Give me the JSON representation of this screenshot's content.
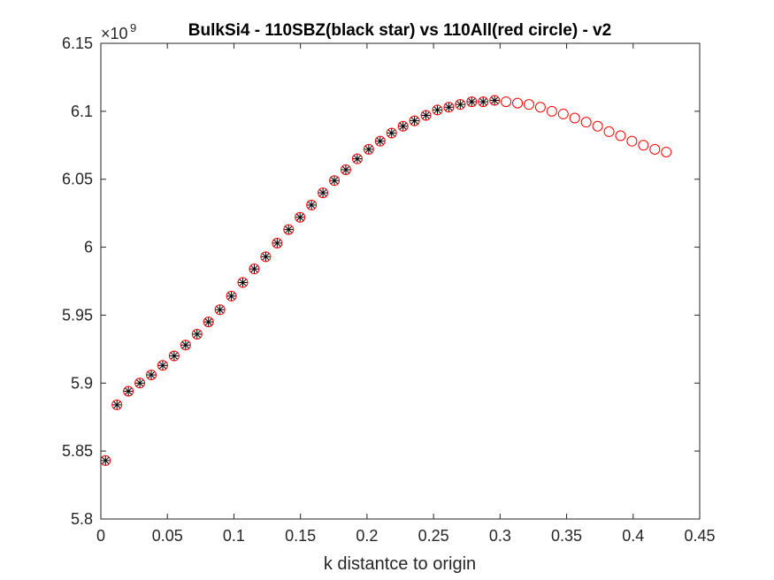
{
  "chart_data": {
    "type": "scatter",
    "title": "BulkSi4 - 110SBZ(black star) vs 110All(red circle) - v2",
    "xlabel": "k distantce to origin",
    "ylabel": "",
    "y_exponent_base": "×10",
    "y_exponent_power": "9",
    "xlim": [
      0,
      0.45
    ],
    "ylim": [
      5.8,
      6.15
    ],
    "xticks": [
      0,
      0.05,
      0.1,
      0.15,
      0.2,
      0.25,
      0.3,
      0.35,
      0.4,
      0.45
    ],
    "xtick_labels": [
      "0",
      "0.05",
      "0.1",
      "0.15",
      "0.2",
      "0.25",
      "0.3",
      "0.35",
      "0.4",
      "0.45"
    ],
    "yticks": [
      5.8,
      5.85,
      5.9,
      5.95,
      6.0,
      6.05,
      6.1,
      6.15
    ],
    "ytick_labels": [
      "5.8",
      "5.85",
      "5.9",
      "5.95",
      "6",
      "6.05",
      "6.1",
      "6.15"
    ],
    "grid": false,
    "series": [
      {
        "marker": "circle",
        "color": "#ff0000",
        "x": [
          0.0035,
          0.0121,
          0.0207,
          0.0293,
          0.0379,
          0.0465,
          0.0551,
          0.0637,
          0.0723,
          0.0809,
          0.0895,
          0.0981,
          0.1067,
          0.1153,
          0.1239,
          0.1325,
          0.1411,
          0.1497,
          0.1583,
          0.1669,
          0.1755,
          0.1841,
          0.1927,
          0.2013,
          0.2099,
          0.2185,
          0.2271,
          0.2357,
          0.2443,
          0.2529,
          0.2615,
          0.2701,
          0.2787,
          0.2873,
          0.2959,
          0.3045,
          0.3131,
          0.3217,
          0.3303,
          0.3389,
          0.3475,
          0.3561,
          0.3647,
          0.3733,
          0.3819,
          0.3905,
          0.3991,
          0.4077,
          0.4163,
          0.4249
        ],
        "values": [
          5.843,
          5.884,
          5.894,
          5.9,
          5.906,
          5.913,
          5.92,
          5.928,
          5.936,
          5.945,
          5.954,
          5.964,
          5.974,
          5.984,
          5.993,
          6.003,
          6.013,
          6.022,
          6.031,
          6.04,
          6.049,
          6.057,
          6.065,
          6.072,
          6.078,
          6.084,
          6.089,
          6.093,
          6.097,
          6.101,
          6.103,
          6.105,
          6.107,
          6.107,
          6.108,
          6.107,
          6.106,
          6.105,
          6.103,
          6.1,
          6.098,
          6.095,
          6.092,
          6.089,
          6.085,
          6.082,
          6.078,
          6.075,
          6.072,
          6.07
        ]
      },
      {
        "marker": "star",
        "color": "#000000",
        "x": [
          0.0035,
          0.0121,
          0.0207,
          0.0293,
          0.0379,
          0.0465,
          0.0551,
          0.0637,
          0.0723,
          0.0809,
          0.0895,
          0.0981,
          0.1067,
          0.1153,
          0.1239,
          0.1325,
          0.1411,
          0.1497,
          0.1583,
          0.1669,
          0.1755,
          0.1841,
          0.1927,
          0.2013,
          0.2099,
          0.2185,
          0.2271,
          0.2357,
          0.2443,
          0.2529,
          0.2615,
          0.2701,
          0.2787,
          0.2873,
          0.2959
        ],
        "values": [
          5.843,
          5.884,
          5.894,
          5.9,
          5.906,
          5.913,
          5.92,
          5.928,
          5.936,
          5.945,
          5.954,
          5.964,
          5.974,
          5.984,
          5.993,
          6.003,
          6.013,
          6.022,
          6.031,
          6.04,
          6.049,
          6.057,
          6.065,
          6.072,
          6.078,
          6.084,
          6.089,
          6.093,
          6.097,
          6.101,
          6.103,
          6.105,
          6.107,
          6.107,
          6.108
        ]
      }
    ]
  }
}
